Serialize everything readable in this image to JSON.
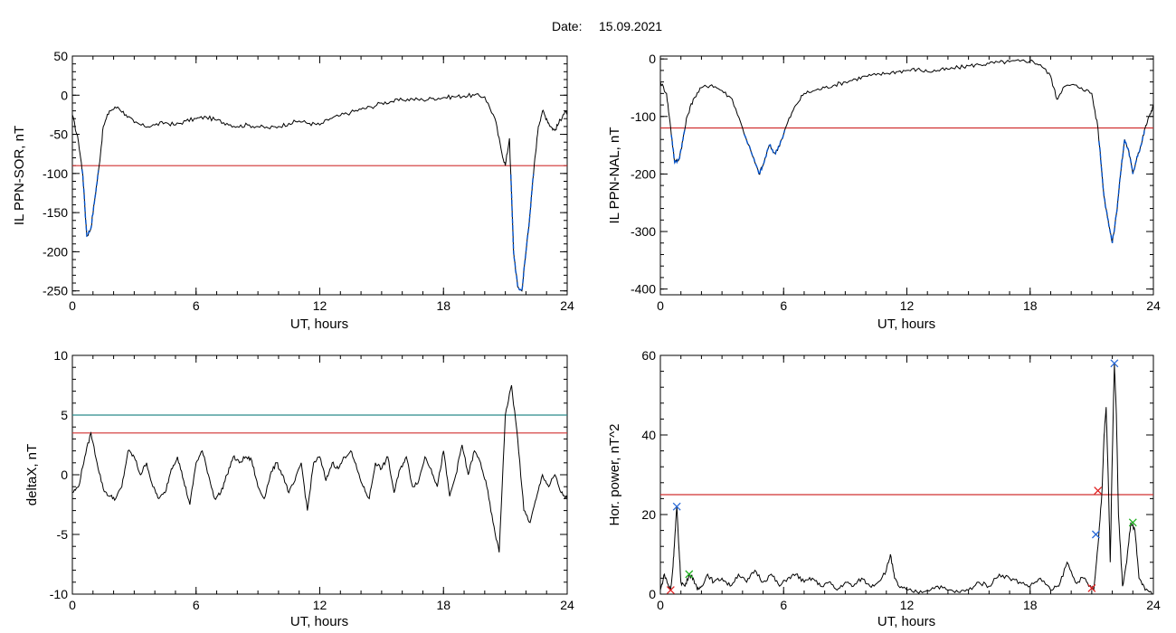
{
  "header": {
    "date_label": "Date:",
    "date_value": "15.09.2021"
  },
  "colors": {
    "trace": "#000000",
    "highlight": "#0050c8",
    "threshold_red": "#d03030",
    "threshold_teal": "#2a8a8a",
    "marker_blue": "#2a6ad8",
    "marker_red": "#e02020",
    "marker_green": "#20b020"
  },
  "chart_data": [
    {
      "type": "line",
      "id": "sor",
      "xlabel": "UT, hours",
      "ylabel": "IL PPN-SOR, nT",
      "xlim": [
        0,
        24
      ],
      "ylim": [
        -255,
        50
      ],
      "xticks": [
        "0",
        "6",
        "12",
        "18",
        "24"
      ],
      "yticks": [
        "50",
        "0",
        "-50",
        "-100",
        "-150",
        "-200",
        "-250"
      ],
      "threshold": {
        "value": -90,
        "color": "#d03030"
      },
      "series": [
        {
          "x": [
            0,
            0.3,
            0.5,
            0.7,
            0.9,
            1.1,
            1.3,
            1.5,
            1.8,
            2.2,
            2.6,
            3,
            3.5,
            4,
            4.5,
            5,
            5.5,
            6,
            6.5,
            7,
            7.5,
            8,
            8.5,
            9,
            9.5,
            10,
            10.5,
            11,
            11.5,
            12,
            12.5,
            13,
            13.5,
            14,
            14.5,
            15,
            15.5,
            16,
            16.5,
            17,
            17.5,
            18,
            18.5,
            19,
            19.5,
            20,
            20.5,
            20.8,
            21,
            21.2,
            21.4,
            21.6,
            21.8,
            22,
            22.2,
            22.4,
            22.6,
            22.8,
            23,
            23.2,
            23.4,
            23.6,
            23.8,
            24
          ],
          "y": [
            -25,
            -60,
            -100,
            -180,
            -170,
            -130,
            -90,
            -40,
            -20,
            -15,
            -25,
            -35,
            -40,
            -38,
            -35,
            -38,
            -33,
            -30,
            -28,
            -32,
            -36,
            -40,
            -38,
            -40,
            -42,
            -40,
            -36,
            -33,
            -36,
            -38,
            -30,
            -26,
            -22,
            -18,
            -15,
            -10,
            -8,
            -6,
            -5,
            -6,
            -4,
            -3,
            -2,
            -1,
            0,
            -2,
            -30,
            -70,
            -90,
            -55,
            -200,
            -245,
            -250,
            -200,
            -150,
            -90,
            -40,
            -20,
            -30,
            -40,
            -45,
            -35,
            -25,
            -20
          ]
        }
      ]
    },
    {
      "type": "line",
      "id": "nal",
      "xlabel": "UT, hours",
      "ylabel": "IL PPN-NAL, nT",
      "xlim": [
        0,
        24
      ],
      "ylim": [
        -410,
        5
      ],
      "xticks": [
        "0",
        "6",
        "12",
        "18",
        "24"
      ],
      "yticks": [
        "0",
        "-100",
        "-200",
        "-300",
        "-400"
      ],
      "threshold": {
        "value": -120,
        "color": "#d03030"
      },
      "series": [
        {
          "x": [
            0,
            0.3,
            0.5,
            0.7,
            0.9,
            1.1,
            1.3,
            1.6,
            2,
            2.5,
            3,
            3.5,
            4,
            4.5,
            4.8,
            5,
            5.3,
            5.6,
            5.9,
            6.2,
            6.6,
            7,
            7.5,
            8,
            8.5,
            9,
            9.5,
            10,
            10.5,
            11,
            11.5,
            12,
            12.5,
            13,
            13.5,
            14,
            14.5,
            15,
            15.5,
            16,
            16.5,
            17,
            17.5,
            18,
            18.5,
            19,
            19.3,
            19.6,
            20,
            20.5,
            21,
            21.3,
            21.6,
            21.8,
            22,
            22.2,
            22.4,
            22.6,
            22.8,
            23,
            23.2,
            23.4,
            23.6,
            23.8,
            24
          ],
          "y": [
            -40,
            -60,
            -120,
            -180,
            -175,
            -140,
            -100,
            -70,
            -50,
            -45,
            -55,
            -70,
            -120,
            -170,
            -200,
            -185,
            -150,
            -165,
            -140,
            -110,
            -80,
            -60,
            -55,
            -50,
            -45,
            -40,
            -35,
            -30,
            -28,
            -25,
            -22,
            -20,
            -18,
            -22,
            -20,
            -18,
            -15,
            -12,
            -10,
            -8,
            -6,
            -5,
            -4,
            -3,
            -10,
            -30,
            -70,
            -50,
            -45,
            -50,
            -60,
            -120,
            -240,
            -280,
            -320,
            -270,
            -200,
            -140,
            -160,
            -200,
            -170,
            -150,
            -120,
            -100,
            -80
          ]
        }
      ]
    },
    {
      "type": "line",
      "id": "deltax",
      "xlabel": "UT, hours",
      "ylabel": "deltaX, nT",
      "xlim": [
        0,
        24
      ],
      "ylim": [
        -10,
        10
      ],
      "xticks": [
        "0",
        "6",
        "12",
        "18",
        "24"
      ],
      "yticks": [
        "10",
        "5",
        "0",
        "-5",
        "-10"
      ],
      "thresholds": [
        {
          "value": 5,
          "color": "#2a8a8a"
        },
        {
          "value": 3.5,
          "color": "#d03030"
        }
      ],
      "series": [
        {
          "x": [
            0,
            0.3,
            0.6,
            0.9,
            1.2,
            1.5,
            1.8,
            2.1,
            2.4,
            2.7,
            3,
            3.3,
            3.6,
            3.9,
            4.2,
            4.5,
            4.8,
            5.1,
            5.4,
            5.7,
            6,
            6.3,
            6.6,
            6.9,
            7.2,
            7.5,
            7.8,
            8.1,
            8.4,
            8.7,
            9,
            9.3,
            9.6,
            9.9,
            10.2,
            10.5,
            10.8,
            11.1,
            11.4,
            11.7,
            12,
            12.3,
            12.6,
            12.9,
            13.2,
            13.5,
            13.8,
            14.1,
            14.4,
            14.7,
            15,
            15.3,
            15.6,
            15.9,
            16.2,
            16.5,
            16.8,
            17.1,
            17.4,
            17.7,
            18,
            18.3,
            18.6,
            18.9,
            19.2,
            19.5,
            19.8,
            20.1,
            20.4,
            20.7,
            21,
            21.3,
            21.6,
            21.9,
            22.2,
            22.5,
            22.8,
            23.1,
            23.4,
            23.7,
            24
          ],
          "y": [
            -1.5,
            -1,
            1.5,
            3.5,
            1,
            -1.2,
            -1.8,
            -2,
            -1,
            2,
            1.5,
            0,
            1,
            -1,
            -2,
            -1.5,
            0.5,
            1.5,
            -0.5,
            -2.5,
            1,
            2,
            0,
            -2,
            -1.5,
            0,
            1.5,
            1,
            1.5,
            1.2,
            -1,
            -2,
            0,
            1,
            0,
            -1.5,
            -0.5,
            1,
            -3,
            1,
            1.5,
            -0.5,
            1,
            0.5,
            1.5,
            2,
            0.5,
            -1,
            -2,
            1,
            0.5,
            1.5,
            -1.5,
            0.5,
            1.5,
            -1,
            -0.5,
            1.5,
            0.5,
            -1,
            2,
            -1.8,
            0,
            2.5,
            0,
            2,
            1,
            -1,
            -4,
            -6.5,
            5,
            7.5,
            3,
            -3,
            -4,
            -2,
            0,
            -1,
            0,
            -1.5,
            -2
          ]
        }
      ]
    },
    {
      "type": "line",
      "id": "horpower",
      "xlabel": "UT, hours",
      "ylabel": "Hor. power, nT^2",
      "xlim": [
        0,
        24
      ],
      "ylim": [
        0,
        60
      ],
      "xticks": [
        "0",
        "6",
        "12",
        "18",
        "24"
      ],
      "yticks": [
        "60",
        "40",
        "20",
        "0"
      ],
      "threshold": {
        "value": 25,
        "color": "#d03030"
      },
      "series": [
        {
          "x": [
            0,
            0.2,
            0.4,
            0.5,
            0.6,
            0.7,
            0.8,
            0.9,
            1,
            1.2,
            1.4,
            1.6,
            1.8,
            2,
            2.3,
            2.6,
            3,
            3.4,
            3.8,
            4.2,
            4.6,
            5,
            5.4,
            5.8,
            6.2,
            6.6,
            7,
            7.4,
            7.8,
            8.2,
            8.6,
            9,
            9.4,
            9.8,
            10.2,
            10.6,
            11,
            11.2,
            11.4,
            11.6,
            12,
            12.5,
            13,
            13.5,
            14,
            14.5,
            15,
            15.5,
            16,
            16.5,
            17,
            17.5,
            18,
            18.5,
            19,
            19.4,
            19.8,
            20.2,
            20.6,
            20.9,
            21.1,
            21.3,
            21.5,
            21.6,
            21.7,
            21.8,
            21.9,
            22,
            22.1,
            22.2,
            22.3,
            22.5,
            22.7,
            22.9,
            23.1,
            23.3,
            23.6,
            24
          ],
          "y": [
            1,
            5,
            2,
            1,
            6,
            14,
            22,
            12,
            3,
            2,
            5,
            4,
            1,
            2,
            5,
            3,
            4,
            2,
            5,
            3,
            6,
            3,
            5,
            2,
            4,
            5,
            3,
            4,
            2,
            3,
            1,
            3,
            2,
            4,
            2,
            3,
            6,
            10,
            4,
            2,
            1,
            0.5,
            1,
            2,
            1,
            0.5,
            1,
            3,
            2,
            5,
            4,
            3,
            2,
            4,
            1,
            2,
            8,
            3,
            4,
            2,
            1,
            12,
            26,
            40,
            47,
            30,
            8,
            35,
            58,
            45,
            20,
            2,
            8,
            18,
            16,
            4,
            1,
            0
          ]
        }
      ],
      "markers": [
        {
          "x": 0.5,
          "y": 1,
          "color": "#e02020"
        },
        {
          "x": 0.8,
          "y": 22,
          "color": "#2a6ad8"
        },
        {
          "x": 1.4,
          "y": 5,
          "color": "#20b020"
        },
        {
          "x": 21.0,
          "y": 1.5,
          "color": "#e02020"
        },
        {
          "x": 21.2,
          "y": 15,
          "color": "#2a6ad8"
        },
        {
          "x": 21.3,
          "y": 26,
          "color": "#e02020"
        },
        {
          "x": 22.1,
          "y": 58,
          "color": "#2a6ad8"
        },
        {
          "x": 23.0,
          "y": 18,
          "color": "#20b020"
        }
      ]
    }
  ]
}
